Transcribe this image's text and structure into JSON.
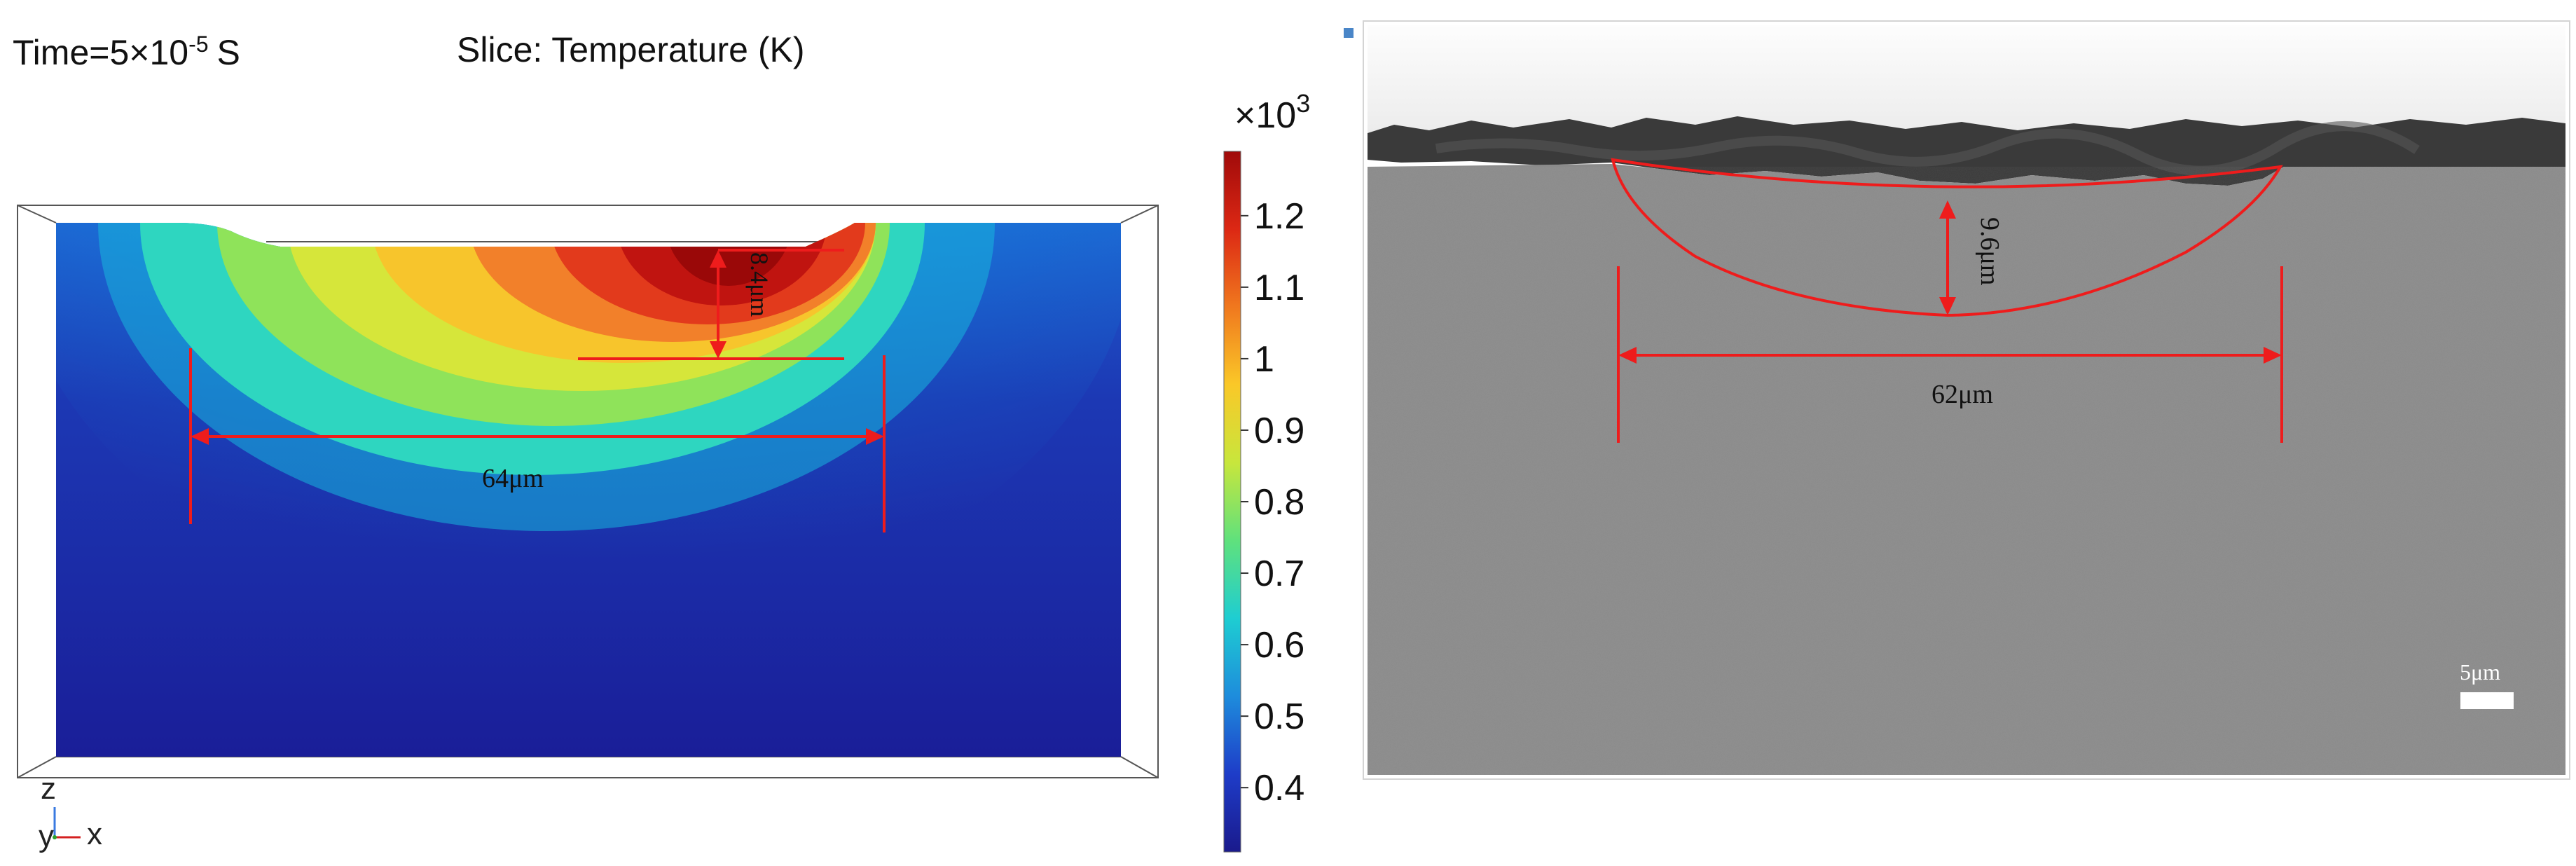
{
  "left_panel": {
    "time_prefix": "Time=5×10",
    "time_exponent": "-5",
    "time_unit": "S",
    "slice_label": "Slice: Temperature (K)",
    "depth_label": "8.4μm",
    "width_label": "64μm",
    "axes": {
      "z": "z",
      "y": "y",
      "x": "x"
    }
  },
  "colorbar": {
    "multiplier_base": "×10",
    "multiplier_exp": "3",
    "ticks": [
      {
        "value": 1.2,
        "label": "1.2"
      },
      {
        "value": 1.1,
        "label": "1.1"
      },
      {
        "value": 1.0,
        "label": "1"
      },
      {
        "value": 0.9,
        "label": "0.9"
      },
      {
        "value": 0.8,
        "label": "0.8"
      },
      {
        "value": 0.7,
        "label": "0.7"
      },
      {
        "value": 0.6,
        "label": "0.6"
      },
      {
        "value": 0.5,
        "label": "0.5"
      },
      {
        "value": 0.4,
        "label": "0.4"
      }
    ],
    "range": [
      0.31,
      1.29
    ],
    "colors": [
      "#1a1a8c",
      "#1e3cc8",
      "#1e8cdc",
      "#1ecdd2",
      "#5fe17d",
      "#c8e63c",
      "#fac828",
      "#f0781e",
      "#dc2814",
      "#a00a0a"
    ]
  },
  "right_panel": {
    "depth_label": "9.6μm",
    "width_label": "62μm",
    "scale_bar_label": "5μm"
  },
  "annotation_color": "#ee1c1c"
}
